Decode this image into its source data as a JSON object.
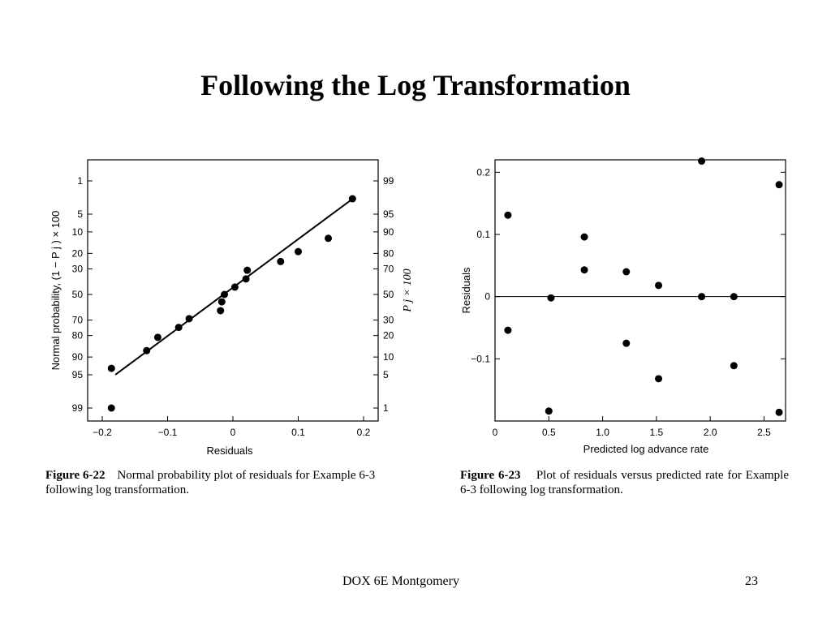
{
  "slide": {
    "title": "Following the Log Transformation",
    "footer_text": "DOX 6E Montgomery",
    "page_number": "23"
  },
  "chart_data": [
    {
      "type": "scatter",
      "figure_label": "Figure 6-22",
      "caption": "Normal probability plot of residuals for Example 6-3 following log transformation.",
      "xlabel": "Residuals",
      "ylabel_left": "Normal probability, (1 − P j ) × 100",
      "ylabel_right": "P j × 100",
      "xlim": [
        -0.2,
        0.2
      ],
      "x_ticks": [
        "−0.2",
        "−0.1",
        "0",
        "0.1",
        "0.2"
      ],
      "y_scale": "normal-probability",
      "y_ticks_left": [
        "1",
        "5",
        "10",
        "20",
        "30",
        "50",
        "70",
        "80",
        "90",
        "95",
        "99"
      ],
      "y_ticks_right": [
        "99",
        "95",
        "90",
        "80",
        "70",
        "50",
        "30",
        "20",
        "10",
        "5",
        "1"
      ],
      "y_tick_pct": [
        99,
        95,
        90,
        80,
        70,
        50,
        30,
        20,
        10,
        5,
        1
      ],
      "points": [
        {
          "x": -0.186,
          "y": 1.0
        },
        {
          "x": -0.186,
          "y": 6.5
        },
        {
          "x": -0.132,
          "y": 12.5
        },
        {
          "x": -0.115,
          "y": 19.0
        },
        {
          "x": -0.083,
          "y": 25.0
        },
        {
          "x": -0.067,
          "y": 31.0
        },
        {
          "x": -0.019,
          "y": 37.0
        },
        {
          "x": -0.017,
          "y": 44.0
        },
        {
          "x": -0.013,
          "y": 50.0
        },
        {
          "x": 0.003,
          "y": 56.0
        },
        {
          "x": 0.02,
          "y": 62.5
        },
        {
          "x": 0.022,
          "y": 69.0
        },
        {
          "x": 0.073,
          "y": 75.0
        },
        {
          "x": 0.1,
          "y": 81.0
        },
        {
          "x": 0.146,
          "y": 87.5
        },
        {
          "x": 0.183,
          "y": 97.5
        }
      ],
      "fit_line": [
        {
          "x": -0.18,
          "y": 5.0
        },
        {
          "x": 0.18,
          "y": 97.3
        }
      ],
      "grid": false
    },
    {
      "type": "scatter",
      "figure_label": "Figure 6-23",
      "caption": "Plot of residuals versus predicted rate for Example 6-3 following log transformation.",
      "xlabel": "Predicted log advance rate",
      "ylabel": "Residuals",
      "xlim": [
        0,
        2.7
      ],
      "ylim": [
        -0.2,
        0.22
      ],
      "x_ticks": [
        "0",
        "0.5",
        "1.0",
        "1.5",
        "2.0",
        "2.5"
      ],
      "x_tick_values": [
        0,
        0.5,
        1.0,
        1.5,
        2.0,
        2.5
      ],
      "y_ticks": [
        "0.2",
        "0.1",
        "0",
        "−0.1"
      ],
      "y_tick_values": [
        0.2,
        0.1,
        0,
        -0.1
      ],
      "reference_line_y": 0,
      "points": [
        {
          "x": 0.12,
          "y": 0.131
        },
        {
          "x": 0.12,
          "y": -0.054
        },
        {
          "x": 0.5,
          "y": -0.184
        },
        {
          "x": 0.52,
          "y": -0.002
        },
        {
          "x": 0.83,
          "y": 0.096
        },
        {
          "x": 0.83,
          "y": 0.043
        },
        {
          "x": 1.22,
          "y": 0.04
        },
        {
          "x": 1.22,
          "y": -0.075
        },
        {
          "x": 1.52,
          "y": 0.018
        },
        {
          "x": 1.52,
          "y": -0.132
        },
        {
          "x": 1.92,
          "y": 0.218
        },
        {
          "x": 1.92,
          "y": 0.0
        },
        {
          "x": 2.22,
          "y": 0.0
        },
        {
          "x": 2.22,
          "y": -0.111
        },
        {
          "x": 2.64,
          "y": 0.18
        },
        {
          "x": 2.64,
          "y": -0.186
        }
      ],
      "grid": false
    }
  ]
}
